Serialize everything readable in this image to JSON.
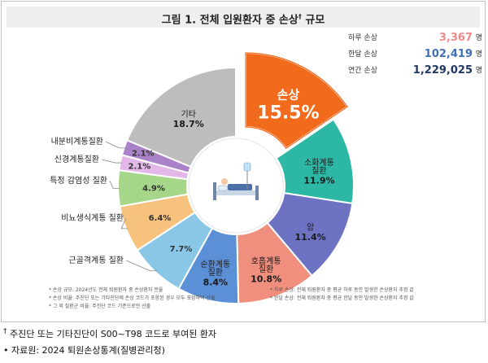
{
  "figure_title": "그림 1. 전체 입원환자 중 손상",
  "title_marker": "†",
  "title_suffix": "규모",
  "stats": [
    {
      "label": "하루 손상",
      "value": "3,367",
      "unit": "명",
      "color": "#f0898a"
    },
    {
      "label": "한달 손상",
      "value": "102,419",
      "unit": "명",
      "color": "#3f6fb8"
    },
    {
      "label": "연간 손상",
      "value": "1,229,025",
      "unit": "명",
      "color": "#1f3864"
    }
  ],
  "chart_data": {
    "type": "pie",
    "categories": [
      "손상",
      "소화계통\n질환",
      "암",
      "호흡계통\n질환",
      "순환계통\n질환",
      "근골격계통 질환",
      "비뇨생식계통 질환",
      "특정 감염성 질환",
      "신경계통질환",
      "내분비계통질환",
      "기타"
    ],
    "values": [
      15.5,
      11.9,
      11.4,
      10.8,
      8.4,
      7.7,
      6.4,
      4.9,
      2.1,
      2.1,
      18.7
    ],
    "value_labels": [
      "15.5%",
      "11.9%",
      "11.4%",
      "10.8%",
      "8.4%",
      "7.7%",
      "6.4%",
      "4.9%",
      "2.1%",
      "2.1%",
      "18.7%"
    ],
    "colors": [
      "#f26a1b",
      "#2db8a6",
      "#6d72c3",
      "#f08f7d",
      "#5b8fd6",
      "#8ac6e6",
      "#f7c27e",
      "#a6d68a",
      "#e3b8e8",
      "#a982c9",
      "#bdbdbd"
    ],
    "donut": true
  },
  "notes_left": [
    "* 손상 규모: 2024년도 전체 퇴원환자 중 손상환자 분율",
    "* 손상 비율: 주진단 또는 기타진단에 손상 코드가 포함된 경우 모두 포함하여 산출",
    "* 그 외 질환군 비율: 주진단 코드 기준으로만 산출"
  ],
  "notes_right": [
    "* 하루 손상: 전체 퇴원환자 중 평균 하루 동안 발생한 손상환자 추정 값",
    "* 한달 손상: 전체 퇴원환자 중 평균 한달 동안 발생한 손상환자 추정 값"
  ],
  "footer": {
    "note_marker": "†",
    "note_text": "주진단 또는 기타진단이 S00~T98 코드로 부여된 환자",
    "source_marker": "•",
    "source_text": "자료원: 2024 퇴원손상통계(질병관리청)"
  }
}
